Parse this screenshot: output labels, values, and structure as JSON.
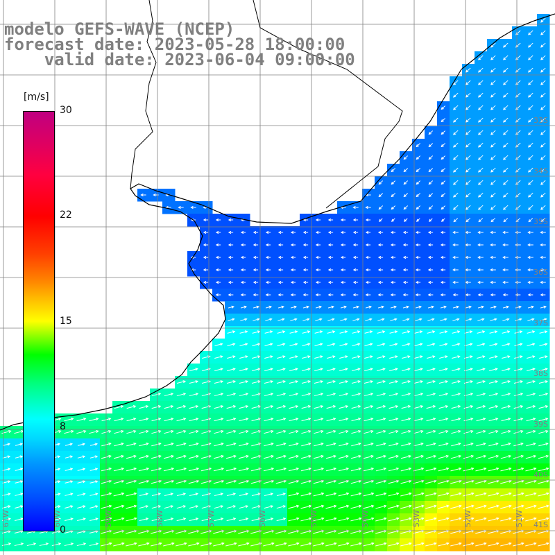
{
  "title": {
    "line1": "modelo GEFS-WAVE (NCEP)",
    "line2": "forecast date: 2023-05-28 18:00:00",
    "line3": "    valid date: 2023-06-04 09:00:00"
  },
  "colorbar": {
    "unit": "[m/s]",
    "min": 0,
    "max": 30,
    "ticks": [
      "30",
      "22",
      "15",
      "8",
      "0"
    ],
    "colors": [
      "#0000ff",
      "#00ffff",
      "#00ff00",
      "#ffff00",
      "#ff0000",
      "#c00080"
    ]
  },
  "map": {
    "lat_labels": [
      "34S",
      "35S",
      "36S",
      "37S",
      "38S",
      "39S",
      "40S",
      "41S"
    ],
    "lon_labels": [
      "61W",
      "60W",
      "59W",
      "58W",
      "57W",
      "56W",
      "55W",
      "54W",
      "53W",
      "52W",
      "51W"
    ],
    "partial_lat_labels": [
      "33S"
    ],
    "land_color": "#ffffff",
    "coast_color": "#000000",
    "grid_color": "#808080"
  }
}
